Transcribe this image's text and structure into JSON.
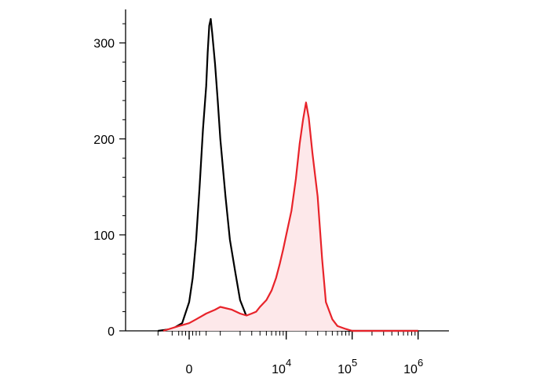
{
  "chart_data": {
    "type": "area",
    "title": "",
    "xlabel": "",
    "ylabel": "",
    "x_scale": "biexponential",
    "ylim": [
      0,
      330
    ],
    "grid": false,
    "legend": "none",
    "y_ticks": [
      {
        "value": 0,
        "label": "0"
      },
      {
        "value": 100,
        "label": "100"
      },
      {
        "value": 200,
        "label": "200"
      },
      {
        "value": 300,
        "label": "300"
      }
    ],
    "x_ticks": [
      {
        "value": 0,
        "base": "0",
        "exp": ""
      },
      {
        "value": 10000,
        "base": "10",
        "exp": "4"
      },
      {
        "value": 100000,
        "base": "10",
        "exp": "5"
      },
      {
        "value": 1000000,
        "base": "10",
        "exp": "6"
      }
    ],
    "series": [
      {
        "color": "#000000",
        "fill": "none",
        "points": [
          [
            -1000,
            0
          ],
          [
            -500,
            2
          ],
          [
            -200,
            8
          ],
          [
            0,
            30
          ],
          [
            100,
            55
          ],
          [
            200,
            95
          ],
          [
            300,
            150
          ],
          [
            400,
            210
          ],
          [
            500,
            255
          ],
          [
            550,
            290
          ],
          [
            600,
            318
          ],
          [
            650,
            325
          ],
          [
            700,
            310
          ],
          [
            800,
            278
          ],
          [
            900,
            240
          ],
          [
            1000,
            200
          ],
          [
            1200,
            140
          ],
          [
            1400,
            95
          ],
          [
            1700,
            60
          ],
          [
            2000,
            32
          ],
          [
            2500,
            15
          ],
          [
            3000,
            8
          ],
          [
            4000,
            5
          ],
          [
            6000,
            3
          ],
          [
            10000,
            2
          ],
          [
            30000,
            1
          ],
          [
            100000,
            0
          ],
          [
            1000000,
            0
          ]
        ]
      },
      {
        "color": "#e8232a",
        "fill": "#fde8ea",
        "points": [
          [
            -800,
            0
          ],
          [
            -300,
            5
          ],
          [
            0,
            8
          ],
          [
            200,
            12
          ],
          [
            500,
            18
          ],
          [
            800,
            22
          ],
          [
            1000,
            25
          ],
          [
            1500,
            22
          ],
          [
            2000,
            18
          ],
          [
            2500,
            16
          ],
          [
            3000,
            18
          ],
          [
            3500,
            20
          ],
          [
            4000,
            25
          ],
          [
            5000,
            32
          ],
          [
            6000,
            42
          ],
          [
            7000,
            55
          ],
          [
            8000,
            70
          ],
          [
            9000,
            85
          ],
          [
            10000,
            100
          ],
          [
            12000,
            125
          ],
          [
            14000,
            158
          ],
          [
            16000,
            195
          ],
          [
            18000,
            220
          ],
          [
            20000,
            238
          ],
          [
            22000,
            222
          ],
          [
            25000,
            185
          ],
          [
            30000,
            140
          ],
          [
            35000,
            75
          ],
          [
            40000,
            30
          ],
          [
            50000,
            12
          ],
          [
            60000,
            5
          ],
          [
            80000,
            2
          ],
          [
            100000,
            0
          ],
          [
            1000000,
            0
          ]
        ]
      }
    ]
  }
}
